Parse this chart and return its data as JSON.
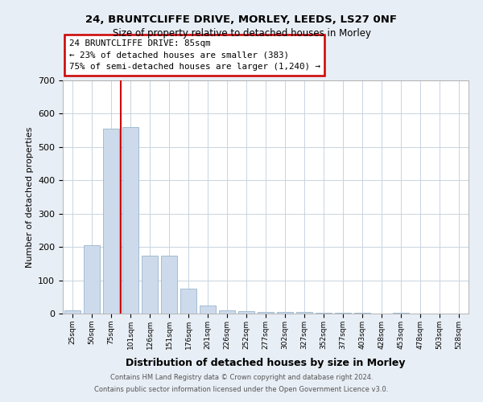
{
  "title1": "24, BRUNTCLIFFE DRIVE, MORLEY, LEEDS, LS27 0NF",
  "title2": "Size of property relative to detached houses in Morley",
  "xlabel": "Distribution of detached houses by size in Morley",
  "ylabel": "Number of detached properties",
  "bar_labels": [
    "25sqm",
    "50sqm",
    "75sqm",
    "101sqm",
    "126sqm",
    "151sqm",
    "176sqm",
    "201sqm",
    "226sqm",
    "252sqm",
    "277sqm",
    "302sqm",
    "327sqm",
    "352sqm",
    "377sqm",
    "403sqm",
    "428sqm",
    "453sqm",
    "478sqm",
    "503sqm",
    "528sqm"
  ],
  "bar_values": [
    10,
    205,
    555,
    560,
    175,
    175,
    75,
    25,
    10,
    7,
    5,
    5,
    4,
    3,
    3,
    3,
    0,
    3,
    0,
    0,
    0
  ],
  "bar_color": "#ccdaeb",
  "bar_edge_color": "#9ab4cc",
  "vline_x": 2.5,
  "vline_color": "#cc0000",
  "ylim": [
    0,
    700
  ],
  "yticks": [
    0,
    100,
    200,
    300,
    400,
    500,
    600,
    700
  ],
  "annotation_line1": "24 BRUNTCLIFFE DRIVE: 85sqm",
  "annotation_line2": "← 23% of detached houses are smaller (383)",
  "annotation_line3": "75% of semi-detached houses are larger (1,240) →",
  "annotation_box_edge_color": "#cc0000",
  "footer1": "Contains HM Land Registry data © Crown copyright and database right 2024.",
  "footer2": "Contains public sector information licensed under the Open Government Licence v3.0.",
  "fig_bg_color": "#e8eef5",
  "plot_bg_color": "#ffffff",
  "grid_color": "#c8d4e0"
}
